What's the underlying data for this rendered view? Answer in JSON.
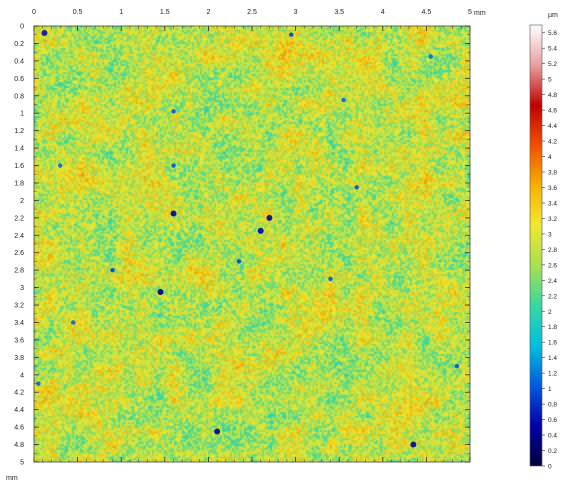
{
  "chart_data": {
    "type": "heatmap",
    "x_unit": "mm",
    "y_unit": "mm",
    "colorbar_unit": "µm",
    "x_ticks": [
      "0",
      "0.5",
      "1",
      "1.5",
      "2",
      "2.5",
      "3",
      "3.5",
      "4",
      "4.5",
      "5"
    ],
    "y_ticks": [
      "0",
      "0.2",
      "0.4",
      "0.6",
      "0.8",
      "1",
      "1.2",
      "1.4",
      "1.6",
      "1.8",
      "2",
      "2.2",
      "2.4",
      "2.6",
      "2.8",
      "3",
      "3.2",
      "3.4",
      "3.6",
      "3.8",
      "4",
      "4.2",
      "4.4",
      "4.6",
      "4.8",
      "5"
    ],
    "xlim": [
      0,
      5
    ],
    "ylim": [
      0,
      5
    ],
    "colorbar_ticks": [
      "5.6",
      "5.4",
      "5.2",
      "5",
      "4.8",
      "4.6",
      "4.4",
      "4.2",
      "4",
      "3.8",
      "3.6",
      "3.4",
      "3.2",
      "3",
      "2.8",
      "2.6",
      "2.4",
      "2.2",
      "2",
      "1.8",
      "1.6",
      "1.4",
      "1.2",
      "1",
      "0.8",
      "0.6",
      "0.4",
      "0.2",
      "0"
    ],
    "colorbar_range": [
      0,
      5.7
    ],
    "mean_value": 2.8,
    "colormap": [
      "#00003a",
      "#0000a8",
      "#005ae0",
      "#00c0e0",
      "#38d8a0",
      "#a8e050",
      "#f0e830",
      "#f8b000",
      "#f05000",
      "#c00000",
      "#e8a0a0",
      "#ffffff"
    ],
    "pits": [
      {
        "x": 0.12,
        "y": 0.08,
        "depth": 0.6
      },
      {
        "x": 1.6,
        "y": 2.15,
        "depth": 0.5
      },
      {
        "x": 2.6,
        "y": 2.35,
        "depth": 0.55
      },
      {
        "x": 2.7,
        "y": 2.2,
        "depth": 0.5
      },
      {
        "x": 1.45,
        "y": 3.05,
        "depth": 0.3
      },
      {
        "x": 2.1,
        "y": 4.65,
        "depth": 0.5
      },
      {
        "x": 4.35,
        "y": 4.8,
        "depth": 0.5
      },
      {
        "x": 0.9,
        "y": 2.8,
        "depth": 0.9
      },
      {
        "x": 1.6,
        "y": 1.6,
        "depth": 1.0
      },
      {
        "x": 1.6,
        "y": 0.98,
        "depth": 1.0
      },
      {
        "x": 2.35,
        "y": 2.7,
        "depth": 0.9
      },
      {
        "x": 3.7,
        "y": 1.85,
        "depth": 1.0
      },
      {
        "x": 3.4,
        "y": 2.9,
        "depth": 1.0
      },
      {
        "x": 4.55,
        "y": 0.35,
        "depth": 1.1
      },
      {
        "x": 4.85,
        "y": 3.9,
        "depth": 1.0
      },
      {
        "x": 0.3,
        "y": 1.6,
        "depth": 1.1
      },
      {
        "x": 0.45,
        "y": 3.4,
        "depth": 1.1
      },
      {
        "x": 3.55,
        "y": 0.85,
        "depth": 1.1
      },
      {
        "x": 0.05,
        "y": 4.1,
        "depth": 1.1
      },
      {
        "x": 2.95,
        "y": 0.1,
        "depth": 0.9
      }
    ]
  }
}
